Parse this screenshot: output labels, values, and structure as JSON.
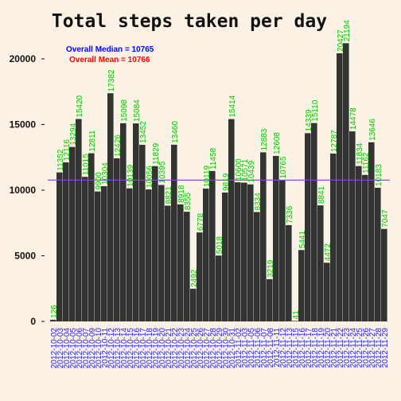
{
  "chart_data": {
    "type": "bar",
    "title": "Total steps taken per day",
    "xlabel": "",
    "ylabel": "",
    "ylim": [
      0,
      22000
    ],
    "yticks": [
      0,
      5000,
      10000,
      15000,
      20000
    ],
    "categories": [
      "2012-10-02",
      "2012-10-03",
      "2012-10-04",
      "2012-10-05",
      "2012-10-06",
      "2012-10-07",
      "2012-10-09",
      "2012-10-10",
      "2012-10-11",
      "2012-10-12",
      "2012-10-13",
      "2012-10-14",
      "2012-10-15",
      "2012-10-16",
      "2012-10-17",
      "2012-10-18",
      "2012-10-19",
      "2012-10-20",
      "2012-10-21",
      "2012-10-22",
      "2012-10-23",
      "2012-10-24",
      "2012-10-25",
      "2012-10-26",
      "2012-10-27",
      "2012-10-28",
      "2012-10-29",
      "2012-10-30",
      "2012-10-31",
      "2012-11-02",
      "2012-11-03",
      "2012-11-05",
      "2012-11-06",
      "2012-11-07",
      "2012-11-08",
      "2012-11-11",
      "2012-11-12",
      "2012-11-13",
      "2012-11-15",
      "2012-11-16",
      "2012-11-17",
      "2012-11-18",
      "2012-11-19",
      "2012-11-20",
      "2012-11-21",
      "2012-11-22",
      "2012-11-23",
      "2012-11-24",
      "2012-11-25",
      "2012-11-26",
      "2012-11-27",
      "2012-11-28",
      "2012-11-29"
    ],
    "xtick_labels": [
      "2012-10-02",
      "2012-10-03",
      "2012-10-04",
      "2012-10-05",
      "2012-10-06",
      "2012-10-07",
      "2012-10-09",
      "2012-10-10",
      "2012-10-11",
      "2012-10-12",
      "2012-10-13",
      "2012-10-14",
      "2012-10-15",
      "2012-10-16",
      "2012-10-17",
      "2012-10-18",
      "2012-10-19",
      "2012-10-20",
      "2012-10-21",
      "2012-10-22",
      "2012-10-23",
      "2012-10-24",
      "2012-10-25",
      "2012-10-26",
      "2012-10-27",
      "2012-10-28",
      "2012-10-29",
      "2012-10-30",
      "2012-10-31",
      "2012-11-02",
      "2012-11-03",
      "2012-11-05",
      "2012-11-06",
      "2012-11-07",
      "2012-11-08",
      "2012-11-11",
      "2012-11-12",
      "2012-11-13",
      "2012-11-15",
      "2012-11-16",
      "2012-11-17",
      "2012-11-18",
      "2012-11-19",
      "2012-11-20",
      "2012-11-21",
      "2012-11-22",
      "2012-11-23",
      "2012-11-24",
      "2012-11-25",
      "2012-11-26",
      "2012-11-27",
      "2012-11-28",
      "2012-11-29"
    ],
    "values": [
      126,
      11352,
      12116,
      13294,
      15420,
      11015,
      12811,
      9900,
      10304,
      17382,
      12426,
      15098,
      10139,
      15084,
      13452,
      10056,
      11829,
      10395,
      8821,
      13460,
      8918,
      8355,
      2492,
      6778,
      10119,
      11458,
      5018,
      9819,
      15414,
      10600,
      10571,
      10439,
      8334,
      12883,
      3219,
      12608,
      10765,
      7336,
      41,
      5441,
      14339,
      15110,
      8841,
      4472,
      12787,
      20427,
      21194,
      14478,
      11834,
      11162,
      13646,
      10183,
      7047
    ],
    "labels": [
      "126",
      "11352",
      "12116",
      "13294",
      "15420",
      "11015",
      "12811",
      "9900",
      "10304",
      "17382",
      "12426",
      "15098",
      "10139",
      "15084",
      "13452",
      "10056",
      "11829",
      "10395",
      "8821",
      "13460",
      "8918",
      "8355",
      "2492",
      "6778",
      "10119",
      "11458",
      "5018",
      "9819",
      "15414",
      "10600",
      "10571",
      "10439",
      "8334",
      "12883",
      "3219",
      "12608",
      "10765",
      "7336",
      "41",
      "5441",
      "14339",
      "15110",
      "8841",
      "4472",
      "12787",
      "20427",
      "21194",
      "14478",
      "11834",
      "11162",
      "13646",
      "10183",
      "7047"
    ],
    "median": 10765,
    "mean": 10766,
    "legend": [
      {
        "text": "Overall Median = 10765",
        "color": "#0000ff"
      },
      {
        "text": "Overall Mean = 10766",
        "color": "#ff0000"
      }
    ],
    "legend_position": "top-left",
    "grid": false,
    "colors": {
      "bar": "#333333",
      "bar_label": "#00cc00",
      "xtick": "#2626d9",
      "mean_line": "#ff0000",
      "median_line": "#6e5bd7",
      "background": "#fbf1e4"
    }
  }
}
